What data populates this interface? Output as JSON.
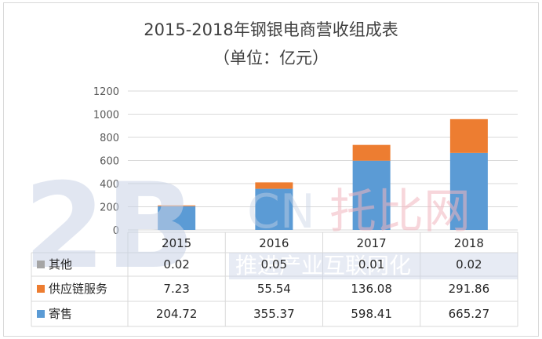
{
  "chart_data": {
    "type": "bar",
    "stacked": true,
    "title": "2015-2018年钢银电商营收组成表",
    "subtitle": "（单位：亿元）",
    "categories": [
      "2015",
      "2016",
      "2017",
      "2018"
    ],
    "ylim": [
      0,
      1200
    ],
    "yticks": [
      "0",
      "200",
      "400",
      "600",
      "800",
      "1000",
      "1200"
    ],
    "grid": true,
    "legend": "data-table",
    "series": [
      {
        "name": "其他",
        "color": "#a5a5a5",
        "values": [
          0.02,
          0.05,
          0.01,
          0.02
        ],
        "labels": [
          "0.02",
          "0.05",
          "0.01",
          "0.02"
        ]
      },
      {
        "name": "供应链服务",
        "color": "#ed7d31",
        "values": [
          7.23,
          55.54,
          136.08,
          291.86
        ],
        "labels": [
          "7.23",
          "55.54",
          "136.08",
          "291.86"
        ]
      },
      {
        "name": "寄售",
        "color": "#5b9bd5",
        "values": [
          204.72,
          355.37,
          598.41,
          665.27
        ],
        "labels": [
          "204.72",
          "355.37",
          "598.41",
          "665.27"
        ]
      }
    ]
  },
  "watermark": {
    "logo_text": "2B",
    "cn_text": "CN",
    "brand_text": "托比网",
    "slogan": "推进产业互联网化"
  }
}
